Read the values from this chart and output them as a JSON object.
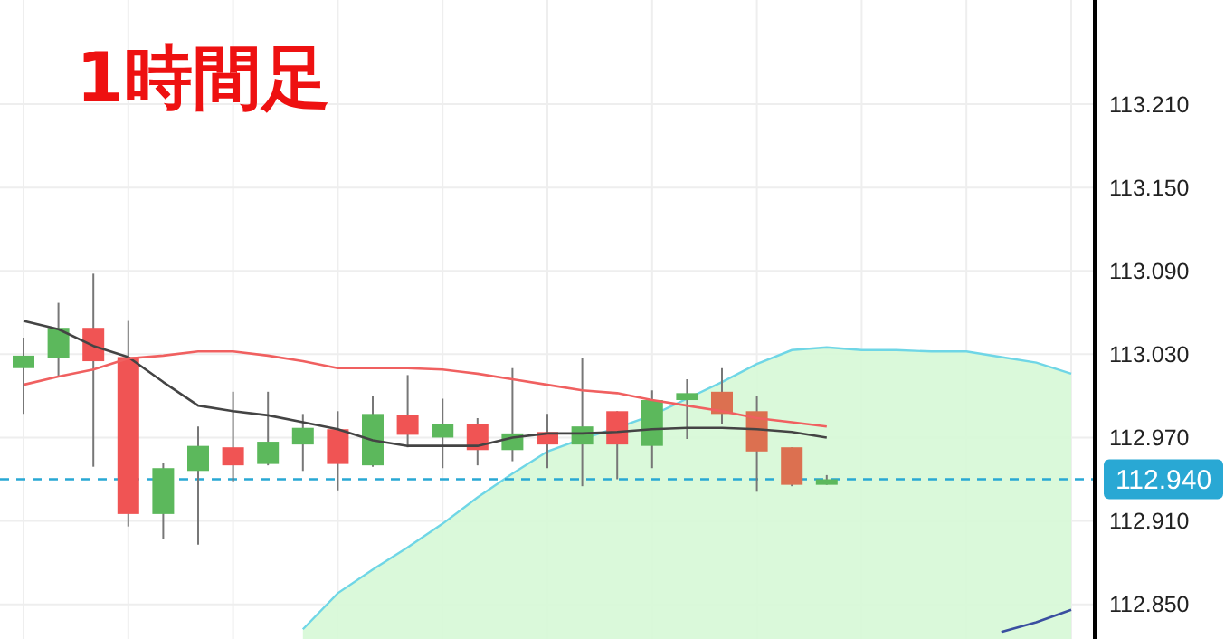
{
  "chart_data": {
    "type": "candlestick",
    "title": "1時間足",
    "categories": [
      null,
      null,
      null,
      null,
      null,
      null,
      null,
      null,
      null,
      null,
      null,
      null,
      null,
      null,
      null,
      null,
      null,
      null,
      null,
      null,
      null,
      null,
      null,
      null,
      null,
      null,
      null,
      null,
      null,
      null,
      null
    ],
    "ohlc": [
      [
        113.02,
        113.042,
        112.987,
        113.029
      ],
      [
        113.027,
        113.067,
        113.014,
        113.049
      ],
      [
        113.049,
        113.088,
        112.949,
        113.025
      ],
      [
        113.028,
        113.054,
        112.906,
        112.915
      ],
      [
        112.915,
        112.952,
        112.897,
        112.948
      ],
      [
        112.946,
        112.978,
        112.893,
        112.964
      ],
      [
        112.963,
        113.003,
        112.938,
        112.95
      ],
      [
        112.951,
        113.003,
        112.95,
        112.967
      ],
      [
        112.965,
        112.987,
        112.946,
        112.977
      ],
      [
        112.976,
        112.989,
        112.932,
        112.951
      ],
      [
        112.95,
        113.0,
        112.949,
        112.987
      ],
      [
        112.986,
        113.015,
        112.963,
        112.972
      ],
      [
        112.97,
        112.998,
        112.948,
        112.98
      ],
      [
        112.98,
        112.984,
        112.95,
        112.961
      ],
      [
        112.961,
        113.02,
        112.953,
        112.973
      ],
      [
        112.974,
        112.987,
        112.948,
        112.965
      ],
      [
        112.965,
        113.027,
        112.935,
        112.978
      ],
      [
        112.989,
        112.989,
        112.94,
        112.965
      ],
      [
        112.964,
        113.004,
        112.948,
        112.997
      ],
      [
        112.997,
        113.012,
        112.969,
        113.002
      ],
      [
        113.003,
        113.02,
        112.98,
        112.987
      ],
      [
        112.989,
        113.0,
        112.931,
        112.96
      ],
      [
        112.963,
        112.963,
        112.935,
        112.936
      ],
      [
        112.936,
        112.943,
        112.936,
        112.94
      ],
      null,
      null,
      null,
      null,
      null,
      null,
      null
    ],
    "colors": [
      "#5cb85c",
      "#5cb85c",
      "#f05454",
      "#f05454",
      "#5cb85c",
      "#5cb85c",
      "#f05454",
      "#5cb85c",
      "#5cb85c",
      "#f05454",
      "#5cb85c",
      "#f05454",
      "#5cb85c",
      "#f05454",
      "#5cb85c",
      "#f05454",
      "#5cb85c",
      "#f05454",
      "#5cb85c",
      "#5cb85c",
      "#dc7050",
      "#dc7050",
      "#dc7050",
      "#5cb85c",
      null,
      null,
      null,
      null,
      null,
      null,
      null
    ],
    "series": [
      {
        "type": "area",
        "color": "#d6f8d6",
        "values": [
          null,
          null,
          null,
          null,
          null,
          null,
          null,
          null,
          112.832,
          112.858,
          112.875,
          112.891,
          112.908,
          112.927,
          112.944,
          112.96,
          112.969,
          112.977,
          112.986,
          112.998,
          113.01,
          113.023,
          113.033,
          113.035,
          113.033,
          113.033,
          113.032,
          113.032,
          113.028,
          113.024,
          113.016
        ]
      },
      {
        "type": "line",
        "color": "#3a4fa0",
        "values": [
          null,
          null,
          null,
          null,
          null,
          null,
          null,
          null,
          null,
          null,
          null,
          null,
          null,
          null,
          null,
          null,
          null,
          null,
          null,
          null,
          null,
          null,
          null,
          null,
          null,
          null,
          null,
          null,
          112.83,
          112.837,
          112.846
        ]
      },
      {
        "type": "line",
        "color": "#444444",
        "values": [
          113.054,
          113.048,
          113.036,
          113.028,
          113.01,
          112.993,
          112.989,
          112.986,
          112.981,
          112.976,
          112.968,
          112.964,
          112.964,
          112.964,
          112.97,
          112.973,
          112.973,
          112.974,
          112.976,
          112.977,
          112.977,
          112.976,
          112.974,
          112.97,
          null,
          null,
          null,
          null,
          null,
          null,
          null
        ]
      },
      {
        "type": "line",
        "color": "#f06060",
        "values": [
          113.008,
          113.014,
          113.019,
          113.027,
          113.029,
          113.032,
          113.032,
          113.029,
          113.025,
          113.02,
          113.02,
          113.02,
          113.019,
          113.016,
          113.012,
          113.008,
          113.004,
          113.002,
          112.997,
          112.993,
          112.989,
          112.984,
          112.981,
          112.978,
          null,
          null,
          null,
          null,
          null,
          null,
          null
        ]
      }
    ],
    "ylim": [
      112.825,
      113.285
    ],
    "yticks": [
      {
        "value": 112.85,
        "label": "112.850"
      },
      {
        "value": 112.91,
        "label": "112.910"
      },
      {
        "value": 112.97,
        "label": "112.970"
      },
      {
        "value": 113.03,
        "label": "113.030"
      },
      {
        "value": 113.09,
        "label": "113.090"
      },
      {
        "value": 113.15,
        "label": "113.150"
      },
      {
        "value": 113.21,
        "label": "113.210"
      }
    ],
    "ref_lines": [
      {
        "axis": "y",
        "value": 112.94,
        "label": "112.940",
        "color": "#29a8d4",
        "line_style": "dashed"
      }
    ],
    "grid": true
  }
}
